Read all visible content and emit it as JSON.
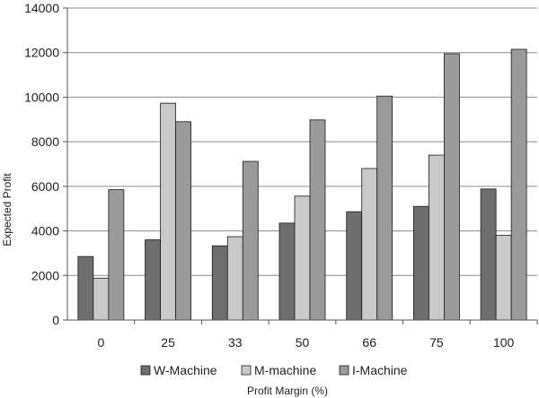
{
  "chart_data": {
    "type": "bar",
    "title": "",
    "xlabel": "Profit Margin (%)",
    "ylabel": "Expected Profit",
    "categories": [
      "0",
      "25",
      "33",
      "50",
      "66",
      "75",
      "100"
    ],
    "series": [
      {
        "name": "W-Machine",
        "color": "#6e6e6e",
        "values": [
          2850,
          3600,
          3330,
          4350,
          4860,
          5100,
          5880
        ]
      },
      {
        "name": "M-machine",
        "color": "#c9c9c9",
        "values": [
          1880,
          9730,
          3740,
          5560,
          6800,
          7400,
          3800
        ]
      },
      {
        "name": "I-Machine",
        "color": "#9a9a9a",
        "values": [
          5850,
          8900,
          7120,
          8980,
          10050,
          11950,
          12150
        ]
      }
    ],
    "ylim": [
      0,
      14000
    ],
    "yticks": [
      0,
      2000,
      4000,
      6000,
      8000,
      10000,
      12000,
      14000
    ],
    "grid": true,
    "legend_position": "bottom"
  }
}
